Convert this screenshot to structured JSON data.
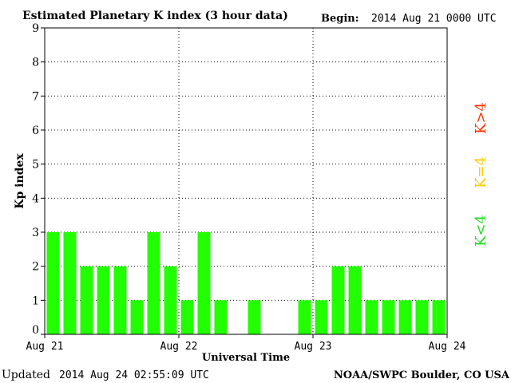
{
  "header": {
    "title": "Estimated Planetary K index (3 hour data)",
    "begin_label": "Begin:",
    "begin_value": "2014 Aug 21 0000 UTC"
  },
  "footer": {
    "updated_label": "Updated",
    "updated_value": "2014 Aug 24 02:55:09 UTC",
    "source": "NOAA/SWPC Boulder, CO USA"
  },
  "legend": [
    {
      "label": "K>4",
      "color": "#ff3300"
    },
    {
      "label": "K=4",
      "color": "#ffcc00"
    },
    {
      "label": "K<4",
      "color": "#22dd22"
    }
  ],
  "chart_data": {
    "type": "bar",
    "title": "Estimated Planetary K index (3 hour data)",
    "xlabel": "Universal Time",
    "ylabel": "Kp index",
    "ylim": [
      0,
      9
    ],
    "yticks": [
      0,
      1,
      2,
      3,
      4,
      5,
      6,
      7,
      8,
      9
    ],
    "xticks": [
      "Aug 21",
      "Aug 22",
      "Aug 23",
      "Aug 24"
    ],
    "interval_hours": 3,
    "grid": true,
    "bar_color": "#22ff00",
    "values": [
      3,
      3,
      2,
      2,
      2,
      1,
      3,
      2,
      1,
      3,
      1,
      0,
      1,
      0,
      0,
      1,
      1,
      2,
      2,
      1,
      1,
      1,
      1,
      1
    ]
  }
}
